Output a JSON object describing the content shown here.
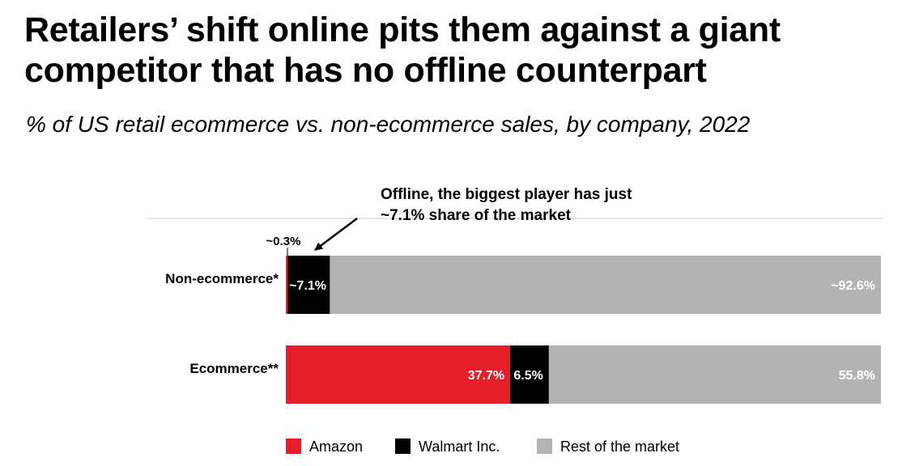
{
  "header": {
    "title": "Retailers’ shift online pits them against a giant competitor that has no offline counterpart",
    "subtitle": "% of US retail ecommerce vs. non-ecommerce sales, by company, 2022"
  },
  "annotation": {
    "line1": "Offline, the biggest player has just",
    "line2": "~7.1% share of the market",
    "small_label": "~0.3%"
  },
  "chart_data": {
    "type": "bar",
    "orientation": "horizontal",
    "stacked": true,
    "title": "Retailers’ shift online pits them against a giant competitor that has no offline counterpart",
    "subtitle": "% of US retail ecommerce vs. non-ecommerce sales, by company, 2022",
    "categories": [
      "Non-ecommerce*",
      "Ecommerce**"
    ],
    "series": [
      {
        "name": "Amazon",
        "color": "#e61e27",
        "values": [
          0.3,
          37.7
        ],
        "labels": [
          "",
          "37.7%"
        ]
      },
      {
        "name": "Walmart Inc.",
        "color": "#000000",
        "values": [
          7.1,
          6.5
        ],
        "labels": [
          "~7.1%",
          "6.5%"
        ]
      },
      {
        "name": "Rest of the market",
        "color": "#b3b3b3",
        "values": [
          92.6,
          55.8
        ],
        "labels": [
          "~92.6%",
          "55.8%"
        ]
      }
    ],
    "xlim": [
      0,
      100
    ],
    "legend_position": "bottom"
  }
}
